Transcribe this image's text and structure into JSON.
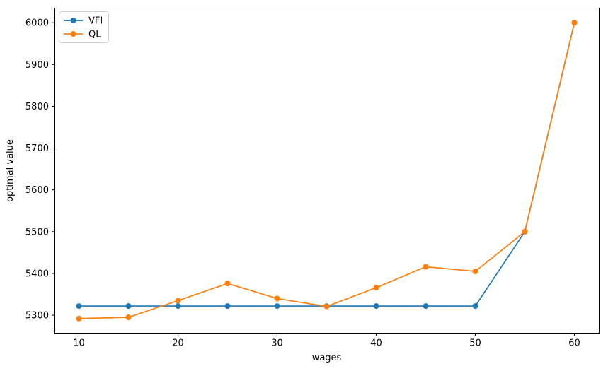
{
  "figure": {
    "background": "#ffffff"
  },
  "chart_data": {
    "type": "line",
    "x": [
      10,
      15,
      20,
      25,
      30,
      35,
      40,
      45,
      50,
      55,
      60
    ],
    "series": [
      {
        "name": "VFI",
        "color": "#1f77b4",
        "values": [
          5322,
          5322,
          5322,
          5322,
          5322,
          5322,
          5322,
          5322,
          5322,
          5500,
          6000
        ]
      },
      {
        "name": "QL",
        "color": "#ff7f0e",
        "values": [
          5292,
          5295,
          5335,
          5376,
          5340,
          5321,
          5366,
          5416,
          5405,
          5500,
          6000
        ]
      }
    ],
    "title": "",
    "xlabel": "wages",
    "ylabel": "optimal value",
    "xlim": [
      7.5,
      62.5
    ],
    "ylim": [
      5257,
      6035
    ],
    "xticks": [
      10,
      20,
      30,
      40,
      50,
      60
    ],
    "yticks": [
      5300,
      5400,
      5500,
      5600,
      5700,
      5800,
      5900,
      6000
    ],
    "legend": {
      "position": "upper left",
      "entries": [
        "VFI",
        "QL"
      ]
    },
    "grid": false,
    "marker": "o",
    "frame_color": "#000000",
    "legend_border_color": "#cccccc"
  }
}
